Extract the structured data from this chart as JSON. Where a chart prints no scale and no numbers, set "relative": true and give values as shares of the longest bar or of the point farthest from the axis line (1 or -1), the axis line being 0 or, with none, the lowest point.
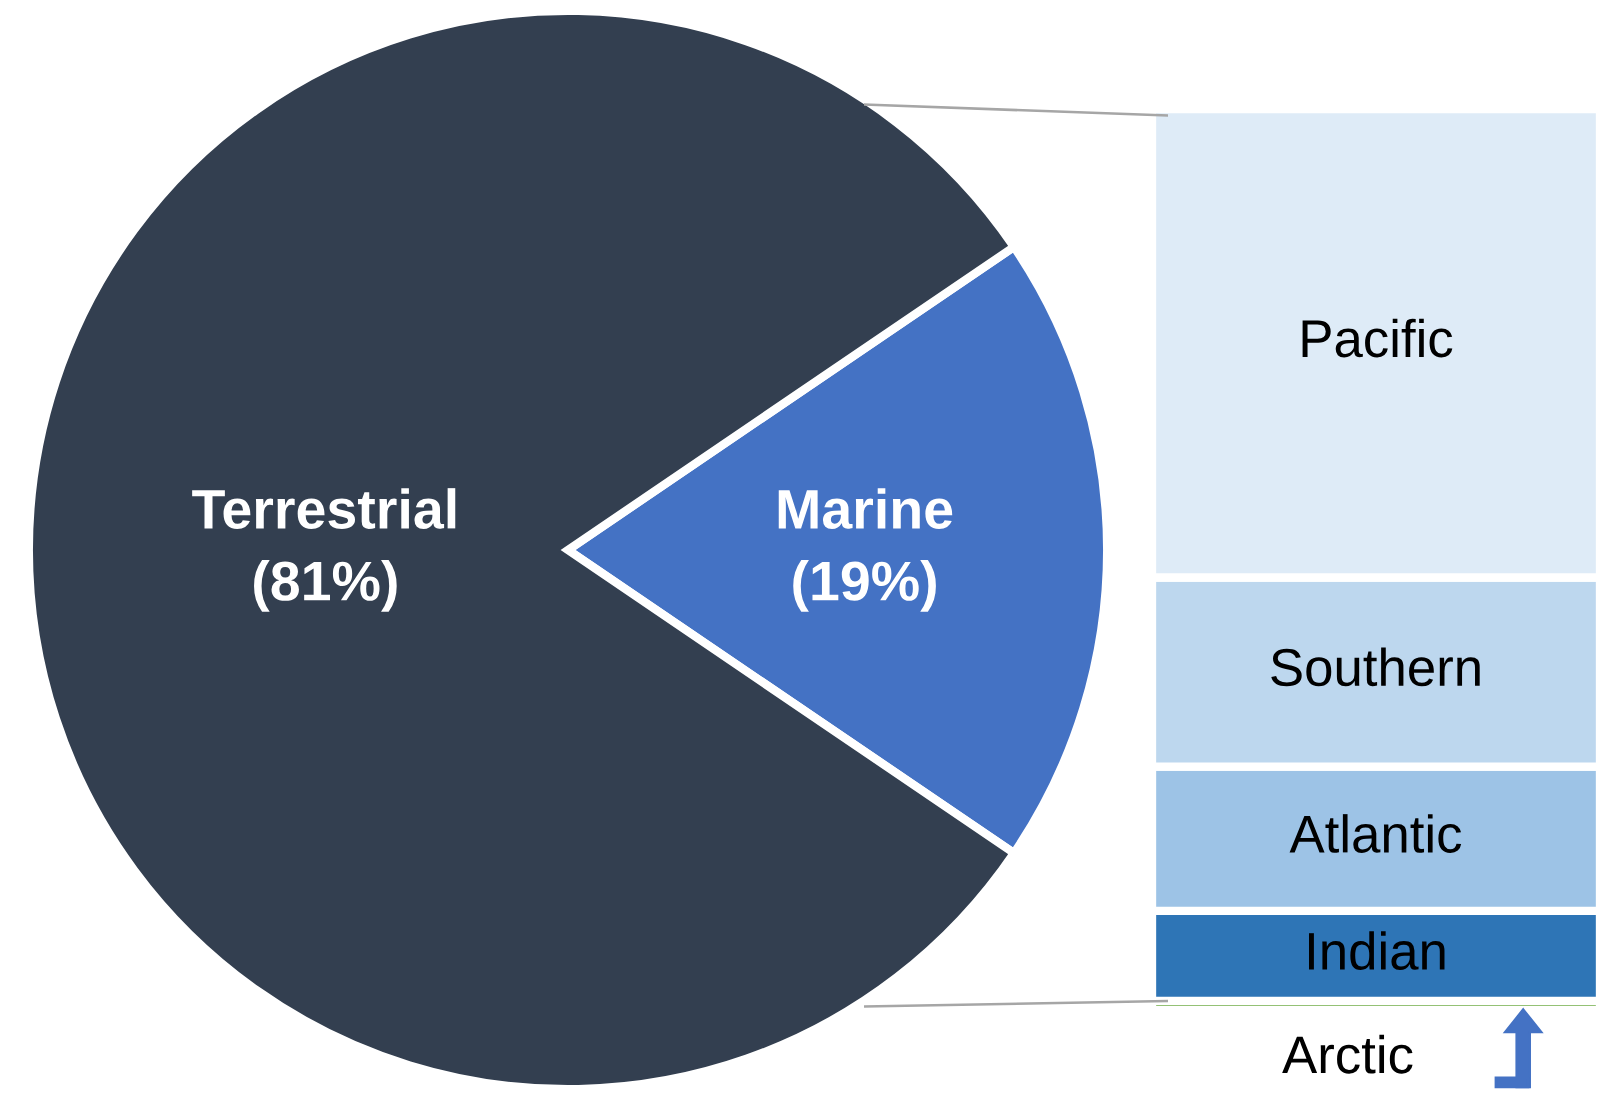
{
  "chart_data": [
    {
      "type": "pie",
      "categories": [
        "Terrestrial",
        "Marine"
      ],
      "values": [
        81,
        19
      ],
      "colors": [
        "#333f50",
        "#4472c4"
      ],
      "value_labels": [
        "(81%)",
        "(19%)"
      ]
    },
    {
      "type": "bar",
      "stacked": true,
      "relative": true,
      "categories": [
        null
      ],
      "series": [
        {
          "name": "Arctic",
          "color": "#70ad47",
          "values": [
            0.01
          ]
        },
        {
          "name": "Indian",
          "color": "#2e75b6",
          "values": [
            0.1
          ]
        },
        {
          "name": "Atlantic",
          "color": "#9dc3e6",
          "values": [
            0.16
          ]
        },
        {
          "name": "Southern",
          "color": "#bdd7ee",
          "values": [
            0.21
          ]
        },
        {
          "name": "Pacific",
          "color": "#deebf7",
          "values": [
            0.52
          ]
        }
      ]
    }
  ]
}
